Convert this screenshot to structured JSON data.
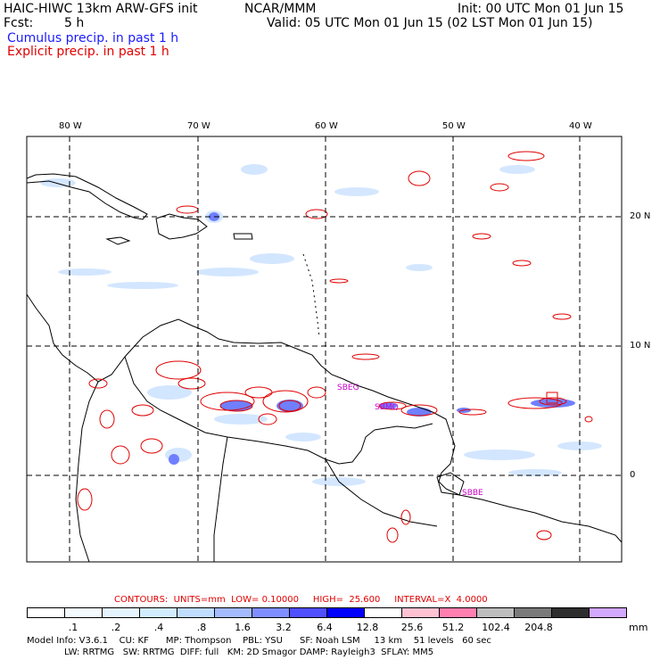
{
  "header": {
    "model": "HAIC-HIWC 13km ARW-GFS init",
    "org": "NCAR/MMM",
    "init": "Init: 00 UTC Mon 01 Jun 15",
    "fcst_label": "Fcst:",
    "fcst_value": "5 h",
    "valid": "Valid: 05 UTC Mon 01 Jun 15 (02 LST Mon 01 Jun 15)",
    "cumulus": "Cumulus precip. in past 1 h",
    "explicit": "Explicit precip. in past 1 h"
  },
  "axes": {
    "lon_labels": [
      "80 W",
      "70 W",
      "60 W",
      "50 W",
      "40 W"
    ],
    "lat_labels": [
      "20 N",
      "10 N",
      "0"
    ]
  },
  "contours": {
    "text": "CONTOURS:  UNITS=mm  LOW= 0.10000     HIGH=  25.600     INTERVAL=X  4.0000"
  },
  "legend": {
    "colors": [
      "#ffffff",
      "#f4fbff",
      "#e4f4ff",
      "#d2ecff",
      "#c0dcff",
      "#a4bcff",
      "#7f8fff",
      "#5050ff",
      "#0000ff",
      "#ffffff",
      "#ffc2d2",
      "#ff7fb0",
      "#bdbdbd",
      "#7a7a7a",
      "#2e2e2e",
      "#d2a8ff"
    ],
    "labels": [
      ".1",
      ".2",
      ".4",
      ".8",
      "1.6",
      "3.2",
      "6.4",
      "12.8",
      "25.6",
      "51.2",
      "102.4",
      "204.8"
    ],
    "unit": "mm"
  },
  "footer": {
    "line1": "Model Info: V3.6.1    CU: KF      MP: Thompson    PBL: YSU      SF: Noah LSM     13 km    51 levels   60 sec",
    "line2": "LW: RRTMG   SW: RRTMG  DIFF: full   KM: 2D Smagor DAMP: Rayleigh3  SFLAY: MM5"
  },
  "annotations": [
    "SBEG",
    "SBMQ",
    "SBBE"
  ]
}
